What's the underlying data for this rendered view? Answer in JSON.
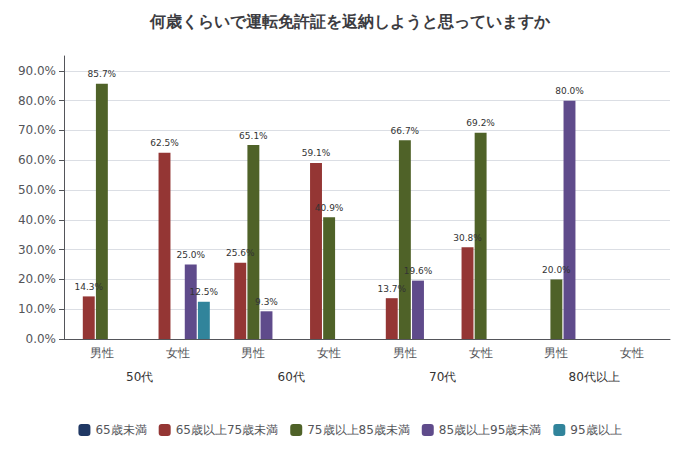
{
  "chart_data": {
    "type": "bar",
    "title": "何歳くらいで運転免許証を返納しようと思っていますか",
    "categories": [
      "男性",
      "女性",
      "男性",
      "女性",
      "男性",
      "女性",
      "男性",
      "女性"
    ],
    "category_groups": [
      "50代",
      "60代",
      "70代",
      "80代以上"
    ],
    "series": [
      {
        "name": "65歳未満",
        "color": "#203864",
        "values": [
          0,
          0,
          0,
          0,
          0,
          0,
          0,
          0
        ],
        "value_labels": [
          null,
          null,
          null,
          null,
          null,
          null,
          null,
          null
        ]
      },
      {
        "name": "65歳以上75歳未満",
        "color": "#943634",
        "values": [
          14.3,
          62.5,
          25.6,
          59.1,
          13.7,
          30.8,
          0,
          0
        ],
        "value_labels": [
          "14.3%",
          "62.5%",
          "25.6%",
          "59.1%",
          "13.7%",
          "30.8%",
          null,
          null
        ]
      },
      {
        "name": "75歳以上85歳未満",
        "color": "#4f6228",
        "values": [
          85.7,
          0,
          65.1,
          40.9,
          66.7,
          69.2,
          20.0,
          0
        ],
        "value_labels": [
          "85.7%",
          null,
          "65.1%",
          "40.9%",
          "66.7%",
          "69.2%",
          "20.0%",
          null
        ]
      },
      {
        "name": "85歳以上95歳未満",
        "color": "#5f4b8b",
        "values": [
          0,
          25.0,
          9.3,
          0,
          19.6,
          0,
          80.0,
          0
        ],
        "value_labels": [
          null,
          "25.0%",
          "9.3%",
          null,
          "19.6%",
          null,
          "80.0%",
          null
        ]
      },
      {
        "name": "95歳以上",
        "color": "#31849b",
        "values": [
          0,
          12.5,
          0,
          0,
          0,
          0,
          0,
          0
        ],
        "value_labels": [
          null,
          "12.5%",
          null,
          null,
          null,
          null,
          null,
          null
        ]
      }
    ],
    "ylim": [
      0,
      95
    ],
    "yticks": [
      {
        "value": 0,
        "label": "0.0%"
      },
      {
        "value": 10,
        "label": "10.0%"
      },
      {
        "value": 20,
        "label": "20.0%"
      },
      {
        "value": 30,
        "label": "30.0%"
      },
      {
        "value": 40,
        "label": "40.0%"
      },
      {
        "value": 50,
        "label": "50.0%"
      },
      {
        "value": 60,
        "label": "60.0%"
      },
      {
        "value": 70,
        "label": "70.0%"
      },
      {
        "value": 80,
        "label": "80.0%"
      },
      {
        "value": 90,
        "label": "90.0%"
      }
    ],
    "grid": true,
    "legend": "bottom",
    "data_labels": true
  }
}
